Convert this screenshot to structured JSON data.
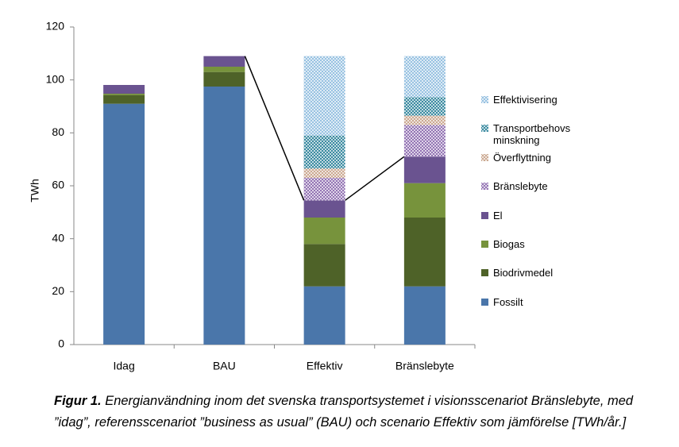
{
  "chart_data": {
    "type": "stacked_bar",
    "y_label": "TWh",
    "categories": [
      "Idag",
      "BAU",
      "Effektiv",
      "Bränslebyte"
    ],
    "series": [
      {
        "name": "Fossilt",
        "color": "#4a76aa",
        "values": [
          91,
          97.5,
          22,
          22
        ]
      },
      {
        "name": "Biodrivmedel",
        "color": "#4e6228",
        "values": [
          3.3,
          5.5,
          16,
          26
        ]
      },
      {
        "name": "Biogas",
        "color": "#77933c",
        "values": [
          0.5,
          2,
          10,
          13
        ]
      },
      {
        "name": "El",
        "color": "#6a5390",
        "values": [
          3.3,
          4,
          6.5,
          10
        ]
      },
      {
        "name": "Bränslebyte",
        "color": "#8e6db0",
        "hatched": true,
        "values": [
          0,
          0,
          8.5,
          12
        ]
      },
      {
        "name": "Överflyttning",
        "color": "#c9a58d",
        "hatched": true,
        "values": [
          0,
          0,
          3.5,
          3.5
        ]
      },
      {
        "name": "Transportbehovs minskning",
        "color": "#31859c",
        "hatched": true,
        "values": [
          0,
          0,
          12.5,
          7
        ]
      },
      {
        "name": "Effektivisering",
        "color": "#93bfe0",
        "hatched": true,
        "values": [
          0,
          0,
          30,
          15.5
        ]
      }
    ],
    "ylim": [
      0,
      120
    ],
    "yticks": [
      0,
      20,
      40,
      60,
      80,
      100,
      120
    ],
    "grid": false
  },
  "caption": {
    "label": "Figur 1.",
    "text": "Energianvändning inom det svenska transportsystemet i visionsscenariot Bränslebyte, med ”idag”, referensscenariot ”business as usual” (BAU) och scenario Effektiv som jämförelse [TWh/år.]"
  }
}
